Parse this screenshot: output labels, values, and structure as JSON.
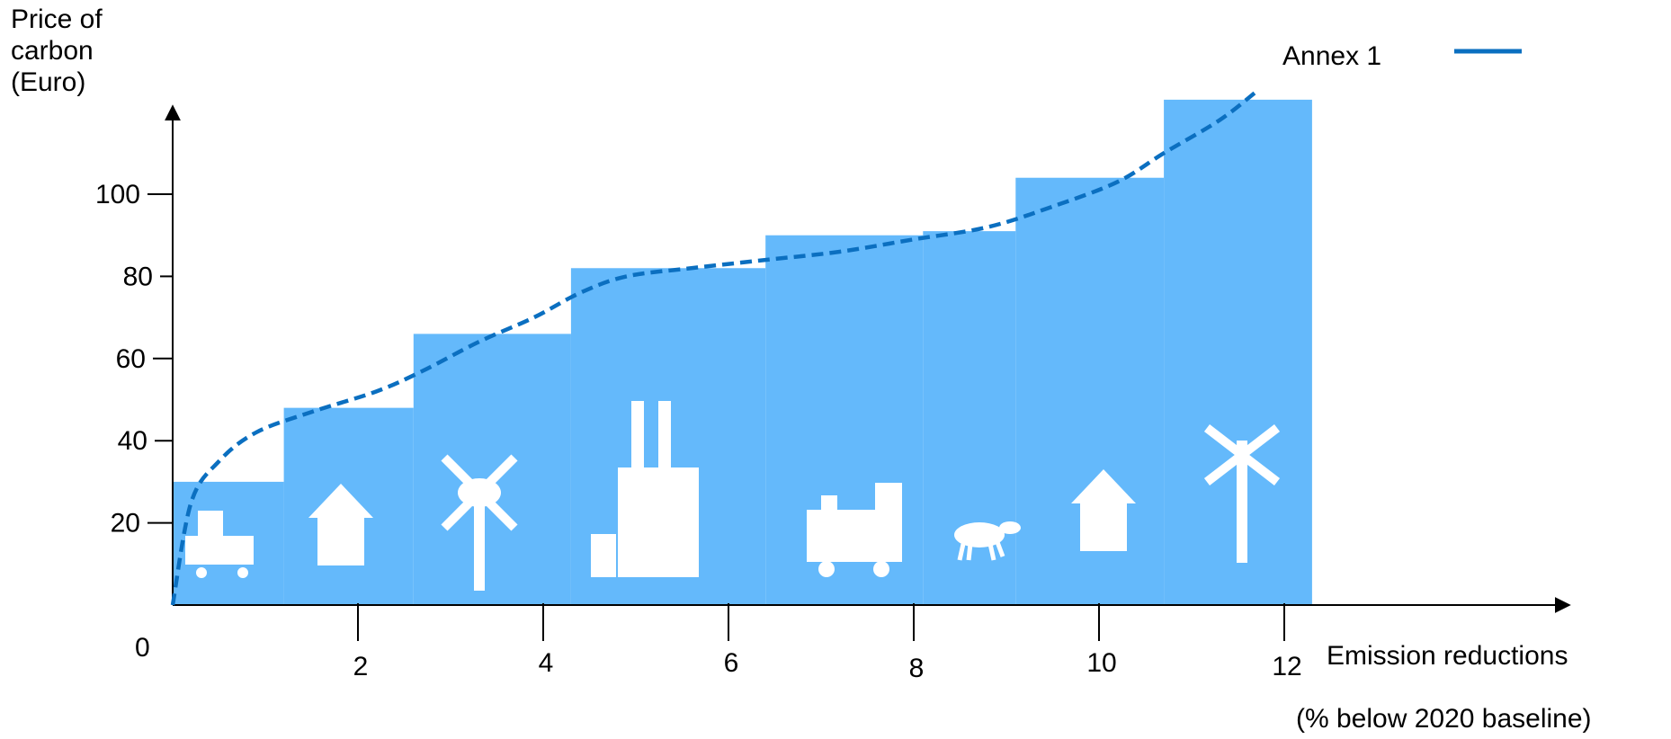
{
  "chart_data": {
    "type": "bar",
    "subtype": "stepped cost curve with dashed trend line",
    "ylabel": [
      "Price of",
      "carbon",
      "(Euro)"
    ],
    "xlabel": "Emission reductions",
    "xlabel_sub": "(% below 2020 baseline)",
    "origin_label": "0",
    "xlim": [
      0,
      16
    ],
    "ylim": [
      0,
      130
    ],
    "y_ticks": [
      {
        "v": 20,
        "label": "20"
      },
      {
        "v": 40,
        "label": "40"
      },
      {
        "v": 60,
        "label": "60"
      },
      {
        "v": 80,
        "label": "80"
      },
      {
        "v": 100,
        "label": "100"
      }
    ],
    "x_ticks": [
      {
        "v": 2,
        "label": "2"
      },
      {
        "v": 4,
        "label": "4"
      },
      {
        "v": 6,
        "label": "6"
      },
      {
        "v": 8,
        "label": "8"
      },
      {
        "v": 10,
        "label": "10"
      },
      {
        "v": 12,
        "label": "12"
      }
    ],
    "steps": [
      {
        "x0": 0.0,
        "x1": 1.2,
        "value": 30,
        "icon": "truck-icon"
      },
      {
        "x0": 1.2,
        "x1": 2.6,
        "value": 48,
        "icon": "house-icon"
      },
      {
        "x0": 2.6,
        "x1": 4.3,
        "value": 66,
        "icon": "wind-turbine-icon"
      },
      {
        "x0": 4.3,
        "x1": 6.4,
        "value": 82,
        "icon": "factory-icon"
      },
      {
        "x0": 6.4,
        "x1": 8.1,
        "value": 90,
        "icon": "locomotive-icon"
      },
      {
        "x0": 8.1,
        "x1": 9.1,
        "value": 91,
        "icon": "sheep-icon"
      },
      {
        "x0": 9.1,
        "x1": 10.7,
        "value": 104,
        "icon": "house-icon"
      },
      {
        "x0": 10.7,
        "x1": 12.3,
        "value": 123,
        "icon": "wind-turbine-icon"
      }
    ],
    "series": [
      {
        "name": "Annex 1",
        "color": "#0B6FC0",
        "style": "dashed",
        "x": [
          0.0,
          0.2,
          0.5,
          0.9,
          1.5,
          2.2,
          2.7,
          3.3,
          3.9,
          4.4,
          4.9,
          5.6,
          6.4,
          7.2,
          8.0,
          8.8,
          9.5,
          10.2,
          10.7,
          11.3,
          11.7
        ],
        "y": [
          0,
          25,
          35,
          42,
          47,
          52,
          57,
          64,
          70,
          76,
          80,
          82,
          84,
          86,
          89,
          92,
          97,
          103,
          110,
          118,
          125
        ]
      }
    ],
    "legend": {
      "position": "top-right"
    },
    "colors": {
      "bar_fill": "#64B9FB",
      "line": "#0B6FC0",
      "axis": "#000000",
      "icon": "#ffffff"
    }
  }
}
